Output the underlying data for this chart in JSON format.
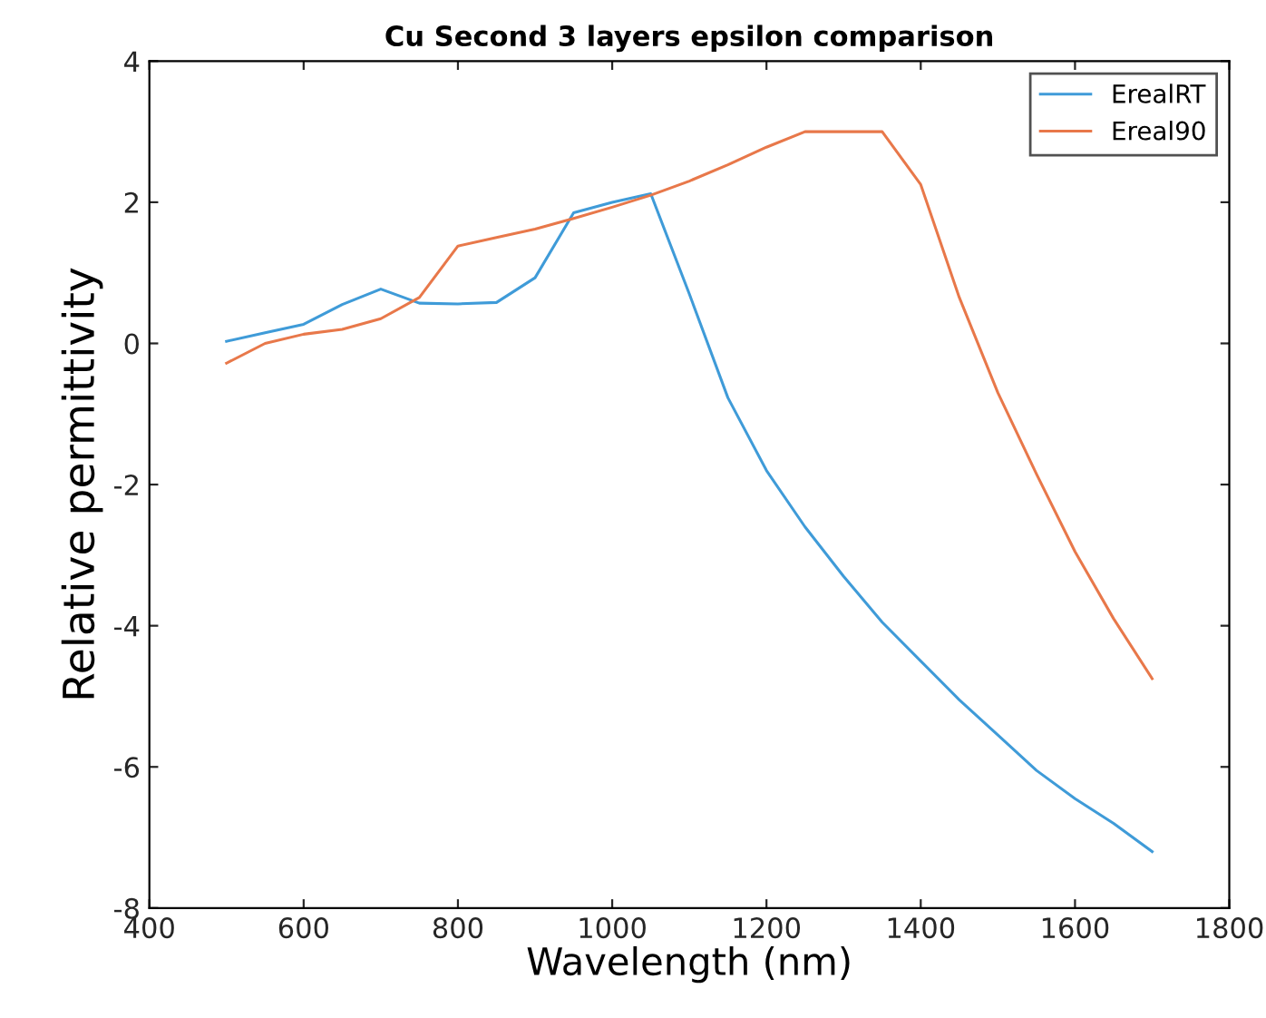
{
  "chart_data": {
    "type": "line",
    "title": "Cu Second 3 layers epsilon comparison",
    "xlabel": "Wavelength (nm)",
    "ylabel": "Relative permittivity",
    "x": [
      500,
      550,
      600,
      650,
      700,
      750,
      800,
      850,
      900,
      950,
      1000,
      1050,
      1100,
      1150,
      1200,
      1250,
      1300,
      1350,
      1400,
      1450,
      1500,
      1550,
      1600,
      1650,
      1700
    ],
    "series": [
      {
        "name": "ErealRT",
        "color": "#3f9bd8",
        "values": [
          0.03,
          0.15,
          0.27,
          0.55,
          0.77,
          0.57,
          0.56,
          0.58,
          0.93,
          1.85,
          2.0,
          2.12,
          0.7,
          -0.77,
          -1.8,
          -2.6,
          -3.3,
          -3.95,
          -4.5,
          -5.05,
          -5.55,
          -6.05,
          -6.45,
          -6.8,
          -7.2
        ]
      },
      {
        "name": "Ereal90",
        "color": "#e8784a",
        "values": [
          -0.28,
          0.0,
          0.13,
          0.2,
          0.35,
          0.65,
          1.38,
          1.5,
          1.62,
          1.77,
          1.93,
          2.1,
          2.3,
          2.53,
          2.78,
          3.0,
          3.0,
          3.0,
          2.25,
          0.65,
          -0.7,
          -1.85,
          -2.95,
          -3.9,
          -4.75
        ]
      }
    ],
    "xlim": [
      400,
      1800
    ],
    "xticks": [
      400,
      600,
      800,
      1000,
      1200,
      1400,
      1600,
      1800
    ],
    "ylim": [
      -8,
      4
    ],
    "yticks": [
      -8,
      -6,
      -4,
      -2,
      0,
      2,
      4
    ],
    "grid": false,
    "legend": "top right"
  }
}
